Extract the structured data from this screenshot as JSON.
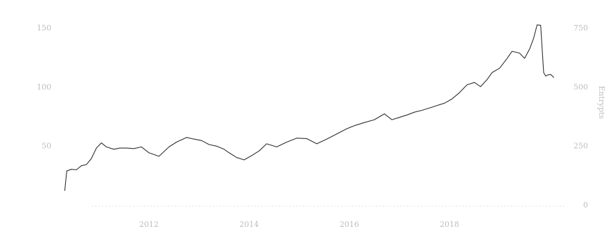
{
  "chart_data": {
    "type": "line",
    "title": "",
    "xlabel": "",
    "ylabel_left": "",
    "ylabel_right": "Entrypts",
    "xlim": [
      2010.3,
      2020.6
    ],
    "ylim_left": [
      0,
      150
    ],
    "ylim_right": [
      0,
      750
    ],
    "left_ticks": [
      {
        "value": 50,
        "label": "50"
      },
      {
        "value": 100,
        "label": "100"
      },
      {
        "value": 150,
        "label": "150"
      }
    ],
    "right_ticks": [
      {
        "value": 0,
        "label": "0"
      },
      {
        "value": 250,
        "label": "250"
      },
      {
        "value": 500,
        "label": "500"
      },
      {
        "value": 750,
        "label": "750"
      }
    ],
    "x_ticks": [
      {
        "value": 2012,
        "label": "2012"
      },
      {
        "value": 2014,
        "label": "2014"
      },
      {
        "value": 2016,
        "label": "2016"
      },
      {
        "value": 2018,
        "label": "2018"
      }
    ],
    "grid": false,
    "legend": "none",
    "colors": {
      "line": "#2e2e2e",
      "tick_text": "#bdbdbd",
      "baseline": "#e0e0e0"
    },
    "series": [
      {
        "axis": "right",
        "x": [
          2010.32,
          2010.36,
          2010.45,
          2010.55,
          2010.65,
          2010.75,
          2010.85,
          2010.95,
          2011.05,
          2011.15,
          2011.3,
          2011.42,
          2011.55,
          2011.7,
          2011.85,
          2012.0,
          2012.2,
          2012.4,
          2012.55,
          2012.75,
          2012.9,
          2013.05,
          2013.2,
          2013.35,
          2013.5,
          2013.6,
          2013.75,
          2013.9,
          2014.05,
          2014.2,
          2014.35,
          2014.55,
          2014.75,
          2014.95,
          2015.15,
          2015.35,
          2015.55,
          2015.75,
          2015.95,
          2016.1,
          2016.3,
          2016.5,
          2016.7,
          2016.85,
          2017.0,
          2017.15,
          2017.3,
          2017.45,
          2017.6,
          2017.75,
          2017.9,
          2018.05,
          2018.2,
          2018.35,
          2018.5,
          2018.62,
          2018.75,
          2018.85,
          2019.0,
          2019.15,
          2019.25,
          2019.4,
          2019.5,
          2019.6,
          2019.68,
          2019.75,
          2019.82,
          2019.88,
          2019.92,
          2019.96,
          2020.02,
          2020.08
        ],
        "y": [
          60,
          143,
          150,
          148,
          165,
          170,
          195,
          240,
          262,
          245,
          235,
          240,
          240,
          238,
          245,
          220,
          205,
          245,
          265,
          285,
          278,
          272,
          255,
          248,
          235,
          220,
          200,
          190,
          208,
          228,
          258,
          245,
          265,
          282,
          280,
          258,
          278,
          300,
          322,
          335,
          348,
          360,
          385,
          360,
          370,
          380,
          392,
          400,
          410,
          420,
          430,
          448,
          475,
          508,
          518,
          500,
          530,
          560,
          578,
          620,
          650,
          642,
          620,
          660,
          705,
          762,
          760,
          560,
          545,
          550,
          552,
          540
        ]
      }
    ]
  }
}
